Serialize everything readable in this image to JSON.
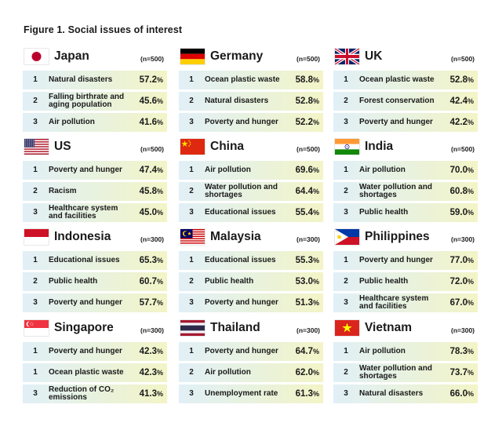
{
  "figure": {
    "title": "Figure 1. Social issues of interest"
  },
  "panels": [
    {
      "country": "Japan",
      "n": "(n=500)",
      "flag_icon": "japan-flag-icon",
      "rows": [
        {
          "rank": "1",
          "issue": "Natural disasters",
          "value": "57.2",
          "unit": "%"
        },
        {
          "rank": "2",
          "issue": "Falling birthrate and aging population",
          "value": "45.6",
          "unit": "%"
        },
        {
          "rank": "3",
          "issue": "Air pollution",
          "value": "41.6",
          "unit": "%"
        }
      ]
    },
    {
      "country": "Germany",
      "n": "(n=500)",
      "flag_icon": "germany-flag-icon",
      "rows": [
        {
          "rank": "1",
          "issue": "Ocean plastic waste",
          "value": "58.8",
          "unit": "%"
        },
        {
          "rank": "2",
          "issue": "Natural disasters",
          "value": "52.8",
          "unit": "%"
        },
        {
          "rank": "3",
          "issue": "Poverty and hunger",
          "value": "52.2",
          "unit": "%"
        }
      ]
    },
    {
      "country": "UK",
      "n": "(n=500)",
      "flag_icon": "uk-flag-icon",
      "rows": [
        {
          "rank": "1",
          "issue": "Ocean plastic waste",
          "value": "52.8",
          "unit": "%"
        },
        {
          "rank": "2",
          "issue": "Forest conservation",
          "value": "42.4",
          "unit": "%"
        },
        {
          "rank": "3",
          "issue": "Poverty and hunger",
          "value": "42.2",
          "unit": "%"
        }
      ]
    },
    {
      "country": "US",
      "n": "(n=500)",
      "flag_icon": "us-flag-icon",
      "rows": [
        {
          "rank": "1",
          "issue": "Poverty and hunger",
          "value": "47.4",
          "unit": "%"
        },
        {
          "rank": "2",
          "issue": "Racism",
          "value": "45.8",
          "unit": "%"
        },
        {
          "rank": "3",
          "issue": "Healthcare system and facilities",
          "value": "45.0",
          "unit": "%"
        }
      ]
    },
    {
      "country": "China",
      "n": "(n=500)",
      "flag_icon": "china-flag-icon",
      "rows": [
        {
          "rank": "1",
          "issue": "Air pollution",
          "value": "69.6",
          "unit": "%"
        },
        {
          "rank": "2",
          "issue": "Water pollution and shortages",
          "value": "64.4",
          "unit": "%"
        },
        {
          "rank": "3",
          "issue": "Educational issues",
          "value": "55.4",
          "unit": "%"
        }
      ]
    },
    {
      "country": "India",
      "n": "(n=500)",
      "flag_icon": "india-flag-icon",
      "rows": [
        {
          "rank": "1",
          "issue": "Air pollution",
          "value": "70.0",
          "unit": "%"
        },
        {
          "rank": "2",
          "issue": "Water pollution and shortages",
          "value": "60.8",
          "unit": "%"
        },
        {
          "rank": "3",
          "issue": "Public health",
          "value": "59.0",
          "unit": "%"
        }
      ]
    },
    {
      "country": "Indonesia",
      "n": "(n=300)",
      "flag_icon": "indonesia-flag-icon",
      "rows": [
        {
          "rank": "1",
          "issue": "Educational issues",
          "value": "65.3",
          "unit": "%"
        },
        {
          "rank": "2",
          "issue": "Public health",
          "value": "60.7",
          "unit": "%"
        },
        {
          "rank": "3",
          "issue": "Poverty and hunger",
          "value": "57.7",
          "unit": "%"
        }
      ]
    },
    {
      "country": "Malaysia",
      "n": "(n=300)",
      "flag_icon": "malaysia-flag-icon",
      "rows": [
        {
          "rank": "1",
          "issue": "Educational issues",
          "value": "55.3",
          "unit": "%"
        },
        {
          "rank": "2",
          "issue": "Public health",
          "value": "53.0",
          "unit": "%"
        },
        {
          "rank": "3",
          "issue": "Poverty and hunger",
          "value": "51.3",
          "unit": "%"
        }
      ]
    },
    {
      "country": "Philippines",
      "n": "(n=300)",
      "flag_icon": "philippines-flag-icon",
      "rows": [
        {
          "rank": "1",
          "issue": "Poverty and hunger",
          "value": "77.0",
          "unit": "%"
        },
        {
          "rank": "2",
          "issue": "Public health",
          "value": "72.0",
          "unit": "%"
        },
        {
          "rank": "3",
          "issue": "Healthcare system and facilities",
          "value": "67.0",
          "unit": "%"
        }
      ]
    },
    {
      "country": "Singapore",
      "n": "(n=300)",
      "flag_icon": "singapore-flag-icon",
      "rows": [
        {
          "rank": "1",
          "issue": "Poverty and hunger",
          "value": "42.3",
          "unit": "%"
        },
        {
          "rank": "1",
          "issue": "Ocean plastic waste",
          "value": "42.3",
          "unit": "%"
        },
        {
          "rank": "3",
          "issue": "Reduction of CO₂ emissions",
          "value": "41.3",
          "unit": "%"
        }
      ]
    },
    {
      "country": "Thailand",
      "n": "(n=300)",
      "flag_icon": "thailand-flag-icon",
      "rows": [
        {
          "rank": "1",
          "issue": "Poverty and hunger",
          "value": "64.7",
          "unit": "%"
        },
        {
          "rank": "2",
          "issue": "Air pollution",
          "value": "62.0",
          "unit": "%"
        },
        {
          "rank": "3",
          "issue": "Unemployment rate",
          "value": "61.3",
          "unit": "%"
        }
      ]
    },
    {
      "country": "Vietnam",
      "n": "(n=300)",
      "flag_icon": "vietnam-flag-icon",
      "rows": [
        {
          "rank": "1",
          "issue": "Air pollution",
          "value": "78.3",
          "unit": "%"
        },
        {
          "rank": "2",
          "issue": "Water pollution and shortages",
          "value": "73.7",
          "unit": "%"
        },
        {
          "rank": "3",
          "issue": "Natural disasters",
          "value": "66.0",
          "unit": "%"
        }
      ]
    }
  ],
  "colors": {
    "row_gradient_left": "#e1f0f7",
    "row_gradient_mid": "#e9f2dc",
    "row_gradient_right": "#f3f4c7",
    "text": "#1a1a1a"
  }
}
